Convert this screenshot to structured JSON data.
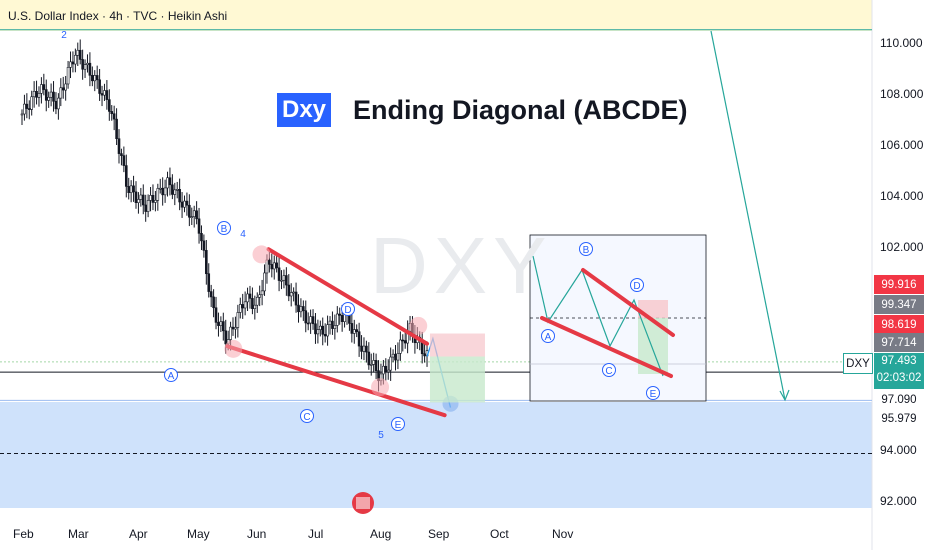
{
  "header": {
    "text": "U.S. Dollar Index · 4h · TVC · Heikin Ashi"
  },
  "title": {
    "badge": "Dxy",
    "text": "Ending Diagonal (ABCDE)"
  },
  "watermark": "DXY",
  "colors": {
    "accent": "#2962ff",
    "pattern_line": "#e53945",
    "arrow": "#26a69a",
    "up": "#26a69a",
    "down": "#e53945",
    "zone": "#cfe2fb",
    "top_band": "#fff9d4"
  },
  "symbol": "DXY",
  "current": {
    "price": "97.493",
    "countdown": "02:03:02"
  },
  "price_tags": [
    {
      "label": "99.916",
      "color": "#f23645"
    },
    {
      "label": "99.347",
      "color": "#787b86"
    },
    {
      "label": "98.619",
      "color": "#f23645"
    },
    {
      "label": "97.714",
      "color": "#787b86"
    },
    {
      "label": "97.090",
      "color": "none"
    },
    {
      "label": "95.979",
      "color": "none"
    }
  ],
  "wave_labels": {
    "A": "A",
    "B": "B",
    "C": "C",
    "D": "D",
    "E": "E",
    "n2": "2",
    "n4": "4",
    "n5": "5"
  },
  "chart_data": {
    "type": "line",
    "title": "Ending Diagonal (ABCDE)",
    "y_ticks": [
      "110.000",
      "108.000",
      "106.000",
      "104.000",
      "102.000",
      "94.000",
      "92.000"
    ],
    "x_ticks": [
      "Feb",
      "Mar",
      "Apr",
      "May",
      "Jun",
      "Jul",
      "Aug",
      "Sep",
      "Oct",
      "Nov"
    ],
    "ylim": [
      91.8,
      111.7
    ],
    "price_path": [
      {
        "x": 0.0,
        "y": 107.2
      },
      {
        "x": 0.3,
        "y": 108.2
      },
      {
        "x": 0.6,
        "y": 107.6
      },
      {
        "x": 0.9,
        "y": 109.6
      },
      {
        "x": 1.2,
        "y": 108.7
      },
      {
        "x": 1.5,
        "y": 107.5
      },
      {
        "x": 1.8,
        "y": 104.3
      },
      {
        "x": 2.1,
        "y": 103.6
      },
      {
        "x": 2.5,
        "y": 104.5
      },
      {
        "x": 2.8,
        "y": 103.5
      },
      {
        "x": 3.0,
        "y": 103.0
      },
      {
        "x": 3.25,
        "y": 99.5
      },
      {
        "x": 3.5,
        "y": 98.3
      },
      {
        "x": 3.8,
        "y": 100.0
      },
      {
        "x": 4.0,
        "y": 99.7
      },
      {
        "x": 4.2,
        "y": 101.5
      },
      {
        "x": 4.5,
        "y": 100.5
      },
      {
        "x": 4.8,
        "y": 99.3
      },
      {
        "x": 5.1,
        "y": 98.6
      },
      {
        "x": 5.5,
        "y": 99.4
      },
      {
        "x": 5.8,
        "y": 98.0
      },
      {
        "x": 6.1,
        "y": 96.9
      },
      {
        "x": 6.4,
        "y": 97.9
      },
      {
        "x": 6.6,
        "y": 98.8
      },
      {
        "x": 6.9,
        "y": 97.7
      }
    ],
    "pattern": {
      "upper_line": [
        {
          "x": 4.2,
          "y": 101.9
        },
        {
          "x": 6.9,
          "y": 98.2
        }
      ],
      "lower_line": [
        {
          "x": 3.5,
          "y": 98.1
        },
        {
          "x": 7.2,
          "y": 95.4
        }
      ],
      "points": [
        {
          "label": "A",
          "x": 3.5,
          "y": 97.7
        },
        {
          "label": "B",
          "x": 4.2,
          "y": 102.1
        },
        {
          "label": "C",
          "x": 6.2,
          "y": 96.2
        },
        {
          "label": "D",
          "x": 6.8,
          "y": 99.3
        },
        {
          "label": "E",
          "x": 7.27,
          "y": 95.6
        }
      ],
      "wave_numbers": [
        {
          "label": "2",
          "x": 1.4,
          "y": 111.3
        },
        {
          "label": "4",
          "x": 4.6,
          "y": 102.0
        },
        {
          "label": "5",
          "x": 7.05,
          "y": 94.9
        }
      ],
      "projection": [
        {
          "x": 6.9,
          "y": 97.7
        },
        {
          "x": 7.0,
          "y": 98.4
        },
        {
          "x": 7.3,
          "y": 95.7
        }
      ]
    },
    "target_zone": [
      91.9,
      96.3
    ],
    "levels": [
      110.5,
      97.09,
      95.979,
      93.9
    ],
    "target_arrow": [
      {
        "x": 12.8,
        "y": 110.4
      },
      {
        "x": 13.3,
        "y": 96.2
      }
    ],
    "inset": {
      "path": [
        {
          "x": 0.0,
          "y": 0.1
        },
        {
          "x": 0.15,
          "y": 0.55
        },
        {
          "x": 0.3,
          "y": 0.2
        },
        {
          "x": 0.45,
          "y": 0.75
        },
        {
          "x": 0.58,
          "y": 0.45
        },
        {
          "x": 0.7,
          "y": 0.95
        }
      ],
      "labels": [
        "A",
        "B",
        "C",
        "D",
        "E"
      ]
    }
  }
}
